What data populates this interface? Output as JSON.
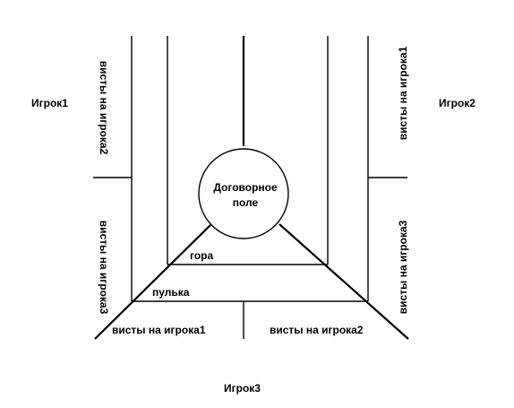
{
  "players": {
    "left": "Игрок1",
    "right": "Игрок2",
    "bottom": "Игрок3"
  },
  "center": {
    "line1": "Договорное",
    "line2": "поле"
  },
  "zones": {
    "gora": "гора",
    "pulka": "пулька"
  },
  "whists": {
    "left_upper": "висты на игрока2",
    "left_lower": "висты на игрока3",
    "right_upper": "висты на игрока1",
    "right_lower": "висты на игрока3",
    "bottom_left": "висты на игрока1",
    "bottom_right": "висты на игрока2"
  }
}
